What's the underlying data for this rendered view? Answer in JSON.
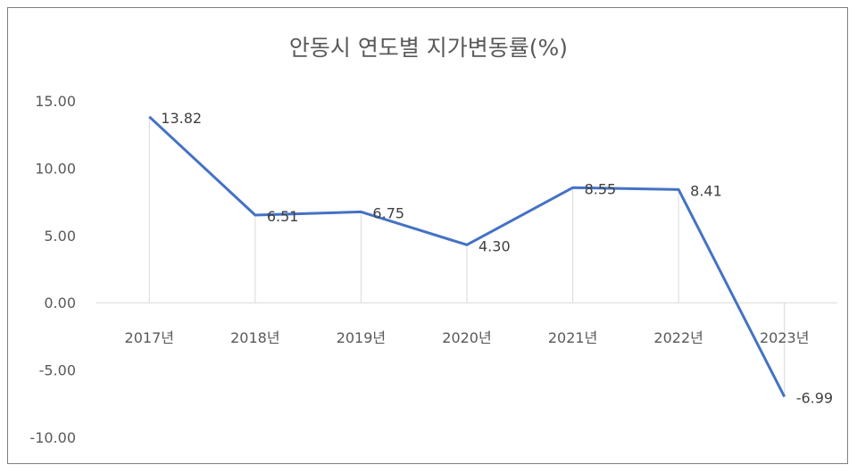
{
  "chart_data": {
    "type": "line",
    "title": "안동시 연도별 지가변동률(%)",
    "xlabel": "",
    "ylabel": "",
    "categories": [
      "2017년",
      "2018년",
      "2019년",
      "2020년",
      "2021년",
      "2022년",
      "2023년"
    ],
    "series": [
      {
        "values": [
          13.82,
          6.51,
          6.75,
          4.3,
          8.55,
          8.41,
          -6.99
        ],
        "data_labels": [
          "13.82",
          "6.51",
          "6.75",
          "4.30",
          "8.55",
          "8.41",
          "-6.99"
        ],
        "color": "#4472c4"
      }
    ],
    "ylim": [
      -10,
      15
    ],
    "yticks": [
      15,
      10,
      5,
      0,
      -5,
      -10
    ],
    "ytick_labels": [
      "15.00",
      "10.00",
      "5.00",
      "0.00",
      "-5.00",
      "-10.00"
    ],
    "drop_lines": true,
    "legend": "none"
  }
}
